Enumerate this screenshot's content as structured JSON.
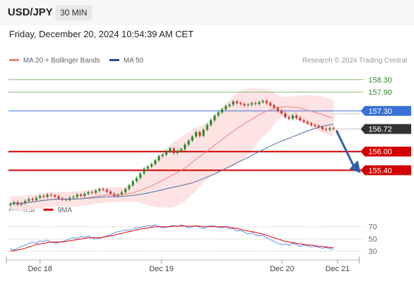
{
  "header": {
    "symbol": "USD/JPY",
    "interval": "30 MIN"
  },
  "datetime": "Friday, December 20, 2024 10:54:39 AM CET",
  "legend": {
    "ma20": "MA 20 + Bollinger Bands",
    "ma50": "MA 50",
    "rsi": "RSI",
    "ma9": "9MA"
  },
  "credit": "Research © 2024 Trading Central",
  "colors": {
    "up": "#2e8b2e",
    "down": "#d93030",
    "ma20": "#f08080",
    "ma50": "#4a6fa5",
    "band": "#fde0e0",
    "rsi": "#5b8def",
    "ma9": "#e00000",
    "support": "#d40000",
    "resistance": "#3a6fd8",
    "target": "#8ab870"
  },
  "chart_data": [
    {
      "type": "candlestick",
      "ylim": [
        154.6,
        158.6
      ],
      "xticks": [
        "Dec 18",
        "Dec 19",
        "Dec 20",
        "Dec 21"
      ],
      "series": [
        {
          "name": "MA 20 + Bollinger Bands"
        },
        {
          "name": "MA 50"
        }
      ],
      "close": [
        154.32,
        154.38,
        154.3,
        154.35,
        154.42,
        154.48,
        154.45,
        154.52,
        154.58,
        154.55,
        154.62,
        154.6,
        154.56,
        154.5,
        154.47,
        154.45,
        154.52,
        154.55,
        154.62,
        154.58,
        154.65,
        154.7,
        154.68,
        154.75,
        154.8,
        154.78,
        154.72,
        154.65,
        154.58,
        154.62,
        154.7,
        154.8,
        154.92,
        155.05,
        155.15,
        155.3,
        155.45,
        155.52,
        155.6,
        155.72,
        155.85,
        155.9,
        156.0,
        156.1,
        155.95,
        156.02,
        156.08,
        156.22,
        156.35,
        156.48,
        156.62,
        156.5,
        156.7,
        156.85,
        157.0,
        157.15,
        157.25,
        157.35,
        157.45,
        157.5,
        157.6,
        157.55,
        157.52,
        157.48,
        157.5,
        157.55,
        157.52,
        157.58,
        157.62,
        157.55,
        157.48,
        157.4,
        157.3,
        157.22,
        157.1,
        157.05,
        157.15,
        157.08,
        157.0,
        156.95,
        156.9,
        156.85,
        156.82,
        156.78,
        156.72,
        156.7,
        156.75,
        156.72
      ],
      "levels": [
        {
          "label": "158.30",
          "role": "target"
        },
        {
          "label": "157.90",
          "role": "target"
        },
        {
          "label": "157.30",
          "role": "resistance"
        },
        {
          "label": "156.72",
          "role": "last"
        },
        {
          "label": "156.00",
          "role": "support"
        },
        {
          "label": "155.40",
          "role": "support"
        }
      ],
      "forecast": {
        "from": 156.72,
        "to": 155.4,
        "direction": "down"
      }
    },
    {
      "type": "line",
      "series": [
        {
          "name": "RSI",
          "values": [
            34,
            32,
            35,
            38,
            40,
            42,
            45,
            43,
            47,
            46,
            48,
            45,
            43,
            44,
            46,
            48,
            50,
            52,
            51,
            54,
            53,
            55,
            52,
            50,
            51,
            53,
            55,
            57,
            60,
            62,
            63,
            65,
            64,
            66,
            68,
            69,
            70,
            72,
            71,
            73,
            70,
            68,
            69,
            71,
            72,
            70,
            73,
            71,
            68,
            70,
            72,
            69,
            67,
            70,
            72,
            71,
            69,
            68,
            70,
            66,
            67,
            63,
            64,
            61,
            58,
            60,
            57,
            55,
            56,
            52,
            49,
            46,
            43,
            41,
            42,
            40,
            43,
            41,
            38,
            40,
            39,
            37,
            38,
            36,
            35,
            36,
            34,
            33
          ]
        },
        {
          "name": "9MA",
          "values": [
            30,
            31,
            32,
            33,
            35,
            37,
            39,
            41,
            42,
            43,
            44,
            45,
            45,
            45,
            45,
            46,
            47,
            48,
            49,
            50,
            51,
            52,
            52,
            52,
            52,
            53,
            54,
            55,
            56,
            58,
            59,
            61,
            62,
            63,
            65,
            66,
            67,
            68,
            69,
            70,
            70,
            70,
            70,
            70,
            71,
            71,
            71,
            71,
            71,
            71,
            71,
            71,
            70,
            70,
            70,
            70,
            70,
            70,
            70,
            69,
            68,
            67,
            66,
            64,
            63,
            62,
            61,
            59,
            58,
            56,
            54,
            52,
            50,
            48,
            46,
            45,
            44,
            43,
            42,
            41,
            40,
            40,
            39,
            38,
            38,
            37,
            36,
            36
          ]
        }
      ],
      "ylim": [
        25,
        80
      ],
      "yticks": [
        70,
        50,
        30
      ]
    }
  ]
}
